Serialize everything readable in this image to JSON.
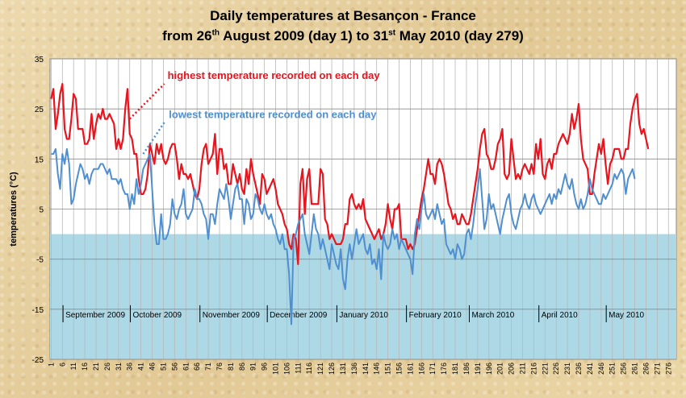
{
  "chart_data": {
    "type": "line",
    "title_line1": "Daily temperatures at Besançon - France",
    "title_line2_parts": [
      "from 26",
      "th",
      " August 2009 (day 1) to 31",
      "st",
      " May 2010 (day 279)"
    ],
    "ylabel": "temperatures (°C)",
    "xlabel": "",
    "ylim": [
      -25,
      35
    ],
    "yticks": [
      -25,
      -15,
      -5,
      5,
      15,
      25,
      35
    ],
    "x_range": [
      1,
      279
    ],
    "x_tick_step": 5,
    "below_zero_fill": "#add8e6",
    "months": [
      {
        "label": "September 2009",
        "start_day": 7
      },
      {
        "label": "October 2009",
        "start_day": 37
      },
      {
        "label": "November 2009",
        "start_day": 68
      },
      {
        "label": "December 2009",
        "start_day": 98
      },
      {
        "label": "January 2010",
        "start_day": 129
      },
      {
        "label": "February 2010",
        "start_day": 160
      },
      {
        "label": "March 2010",
        "start_day": 188
      },
      {
        "label": "April  2010",
        "start_day": 219
      },
      {
        "label": "May  2010",
        "start_day": 249
      }
    ],
    "series": [
      {
        "name": "highest temperature recorded on each day",
        "color": "#e8141e",
        "values": [
          27,
          29,
          21,
          24,
          28,
          30,
          21,
          19,
          19,
          23,
          28,
          27,
          21,
          21,
          21,
          18,
          18,
          19,
          24,
          19,
          22,
          24,
          23,
          25,
          23,
          23,
          24,
          23,
          22,
          17,
          19,
          17,
          19,
          25,
          29,
          20,
          19,
          16,
          16,
          11,
          8,
          8,
          9,
          12,
          18,
          16,
          14,
          18,
          16,
          18,
          15,
          14,
          15,
          17,
          18,
          18,
          15,
          11,
          14,
          12,
          12,
          11,
          12,
          10,
          8,
          7,
          9,
          14,
          17,
          18,
          14,
          15,
          16,
          20,
          12,
          17,
          17,
          13,
          14,
          10,
          10,
          14,
          12,
          10,
          12,
          9,
          8,
          13,
          10,
          15,
          12,
          10,
          8,
          6,
          12,
          11,
          8,
          9,
          10,
          11,
          9,
          6,
          5,
          4,
          2,
          1,
          -2,
          -3,
          0,
          -1,
          -6,
          10,
          13,
          4,
          11,
          13,
          6,
          6,
          6,
          6,
          13,
          12,
          3,
          2,
          -1,
          0,
          -1,
          -2,
          -2,
          -2,
          -1,
          2,
          2,
          7,
          8,
          6,
          5,
          6,
          5,
          7,
          3,
          2,
          1,
          0,
          -1,
          0,
          1,
          -1,
          0,
          2,
          6,
          3,
          1,
          5,
          5,
          6,
          -1,
          -1,
          -1,
          -3,
          -2,
          -3,
          -2,
          1,
          4,
          7,
          9,
          12,
          15,
          12,
          12,
          10,
          14,
          15,
          14,
          12,
          9,
          6,
          5,
          3,
          4,
          2,
          2,
          4,
          3,
          2,
          2,
          4,
          7,
          10,
          13,
          17,
          20,
          21,
          16,
          15,
          13,
          13,
          15,
          18,
          19,
          21,
          12,
          11,
          12,
          19,
          15,
          11,
          12,
          11,
          13,
          14,
          13,
          12,
          14,
          12,
          18,
          15,
          19,
          12,
          11,
          14,
          15,
          13,
          16,
          16,
          18,
          19,
          20,
          19,
          18,
          20,
          24,
          21,
          23,
          26,
          19,
          15,
          14,
          13,
          8,
          8,
          12,
          15,
          18,
          16,
          19,
          14,
          10,
          14,
          15,
          17,
          17,
          17,
          15,
          15,
          17,
          17,
          22,
          25,
          27,
          28,
          22,
          20,
          21,
          19,
          17
        ]
      },
      {
        "name": "lowest temperature recorded on each day",
        "color": "#4f8fd0",
        "values": [
          16,
          16,
          17,
          12,
          9,
          16,
          14,
          17,
          14,
          6,
          7,
          10,
          12,
          14,
          13,
          11,
          12,
          10,
          12,
          13,
          13,
          13,
          14,
          14,
          13,
          12,
          13,
          11,
          11,
          11,
          10,
          11,
          9,
          8,
          8,
          5,
          8,
          6,
          11,
          8,
          10,
          13,
          14,
          15,
          16,
          9,
          2,
          -2,
          -2,
          4,
          -1,
          -1,
          0,
          2,
          7,
          4,
          3,
          5,
          6,
          9,
          4,
          3,
          4,
          5,
          9,
          7,
          7,
          6,
          4,
          3,
          -1,
          4,
          4,
          2,
          6,
          9,
          8,
          7,
          10,
          7,
          3,
          6,
          9,
          10,
          7,
          7,
          2,
          7,
          6,
          3,
          4,
          8,
          7,
          5,
          4,
          6,
          4,
          3,
          4,
          2,
          1,
          -1,
          -2,
          0,
          -3,
          -3,
          -8,
          -18,
          -1,
          0,
          2,
          3,
          4,
          0,
          -2,
          -4,
          0,
          4,
          1,
          0,
          -3,
          -1,
          -3,
          -5,
          -7,
          -2,
          -4,
          -6,
          -7,
          -3,
          -9,
          -11,
          -5,
          -2,
          -5,
          -2,
          1,
          -2,
          -1,
          0,
          -3,
          -4,
          -2,
          -6,
          -5,
          -7,
          -3,
          -9,
          0,
          -2,
          -3,
          -2,
          1,
          -1,
          0,
          -3,
          -1,
          -2,
          -3,
          -4,
          -5,
          -8,
          0,
          3,
          1,
          5,
          8,
          4,
          3,
          4,
          5,
          3,
          6,
          4,
          2,
          3,
          -2,
          -3,
          -4,
          -3,
          -5,
          -2,
          -3,
          -5,
          -4,
          0,
          1,
          -1,
          2,
          6,
          9,
          13,
          7,
          1,
          3,
          8,
          5,
          6,
          4,
          2,
          0,
          3,
          5,
          7,
          8,
          4,
          2,
          1,
          3,
          5,
          6,
          8,
          6,
          5,
          7,
          8,
          6,
          5,
          4,
          5,
          6,
          7,
          8,
          6,
          8,
          7,
          9,
          8,
          10,
          12,
          10,
          9,
          11,
          8,
          6,
          5,
          7,
          5,
          6,
          8,
          11,
          9,
          8,
          7,
          6,
          6,
          8,
          7,
          8,
          9,
          10,
          12,
          11,
          12,
          13,
          12,
          8,
          11,
          12,
          13,
          11
        ]
      }
    ],
    "annotations": [
      {
        "series": 0,
        "text": "highest temperature recorded on each day",
        "from_day": 36,
        "from_value": 23
      },
      {
        "series": 1,
        "text": "lowest temperature recorded on each day",
        "from_day": 42,
        "from_value": 16
      }
    ]
  }
}
